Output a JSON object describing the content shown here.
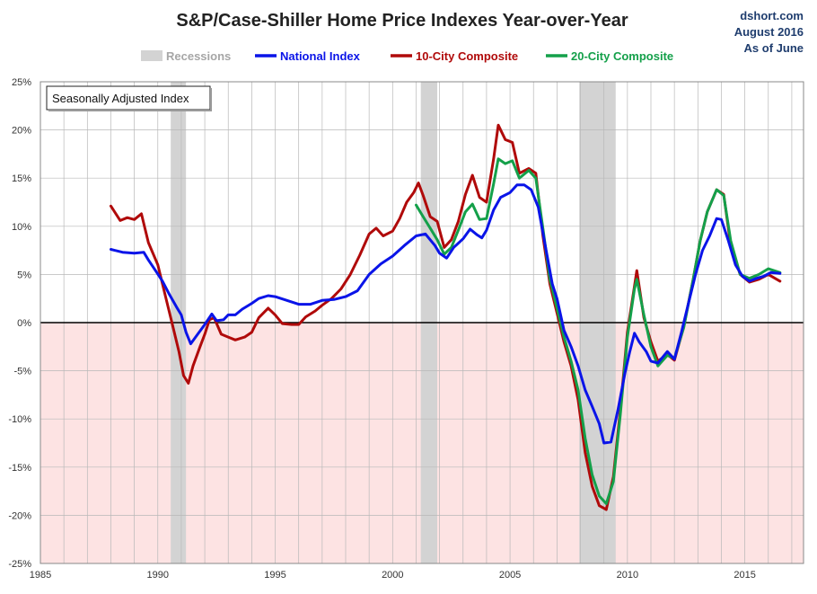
{
  "title": "S&P/Case-Shiller Home Price Indexes Year-over-Year",
  "credit": {
    "line1": "dshort.com",
    "line2": "August 2016",
    "line3": "As of June"
  },
  "annotation": "Seasonally Adjusted Index",
  "colors": {
    "recession": "#d3d3d3",
    "national": "#0a14e8",
    "ten_city": "#b00a0a",
    "twenty_city": "#14a04a",
    "negative_region": "#fde3e3",
    "zero_line": "#000000",
    "grid": "#b8b8b8"
  },
  "chart_data": {
    "type": "line",
    "title": "S&P/Case-Shiller Home Price Indexes Year-over-Year",
    "xlim": [
      1985,
      2017.5
    ],
    "ylim": [
      -25,
      25
    ],
    "x_ticks": [
      1985,
      1990,
      1995,
      2000,
      2005,
      2010,
      2015
    ],
    "x_tick_labels": [
      "1985",
      "1990",
      "1995",
      "2000",
      "2005",
      "2010",
      "2015"
    ],
    "y_ticks": [
      25,
      20,
      15,
      10,
      5,
      0,
      -5,
      -10,
      -15,
      -20,
      -25
    ],
    "y_tick_labels": [
      "25%",
      "20%",
      "15%",
      "10%",
      "5%",
      "0%",
      "-5%",
      "-10%",
      "-15%",
      "-20%",
      "-25%"
    ],
    "grid": true,
    "legend": {
      "position": "top",
      "entries": [
        "Recessions",
        "National Index",
        "10-City Composite",
        "20-City Composite"
      ]
    },
    "recessions": [
      [
        1990.55,
        1991.2
      ],
      [
        2001.2,
        2001.9
      ],
      [
        2007.95,
        2009.5
      ]
    ],
    "series": [
      {
        "name": "National Index",
        "color": "#0a14e8",
        "points": [
          [
            1988.0,
            7.6
          ],
          [
            1988.5,
            7.3
          ],
          [
            1989.0,
            7.2
          ],
          [
            1989.4,
            7.3
          ],
          [
            1989.6,
            6.5
          ],
          [
            1989.9,
            5.4
          ],
          [
            1990.2,
            4.3
          ],
          [
            1990.5,
            2.9
          ],
          [
            1990.8,
            1.6
          ],
          [
            1991.0,
            0.8
          ],
          [
            1991.2,
            -1.0
          ],
          [
            1991.4,
            -2.2
          ],
          [
            1991.7,
            -1.2
          ],
          [
            1992.0,
            -0.2
          ],
          [
            1992.3,
            0.9
          ],
          [
            1992.5,
            0.2
          ],
          [
            1992.8,
            0.3
          ],
          [
            1993.0,
            0.8
          ],
          [
            1993.3,
            0.8
          ],
          [
            1993.6,
            1.4
          ],
          [
            1994.0,
            2.0
          ],
          [
            1994.3,
            2.5
          ],
          [
            1994.7,
            2.8
          ],
          [
            1995.0,
            2.7
          ],
          [
            1995.5,
            2.3
          ],
          [
            1996.0,
            1.9
          ],
          [
            1996.5,
            1.9
          ],
          [
            1997.0,
            2.3
          ],
          [
            1997.5,
            2.4
          ],
          [
            1998.0,
            2.7
          ],
          [
            1998.5,
            3.3
          ],
          [
            1999.0,
            5.0
          ],
          [
            1999.5,
            6.1
          ],
          [
            2000.0,
            6.9
          ],
          [
            2000.5,
            8.0
          ],
          [
            2001.0,
            9.0
          ],
          [
            2001.4,
            9.2
          ],
          [
            2001.8,
            8.0
          ],
          [
            2002.0,
            7.2
          ],
          [
            2002.3,
            6.7
          ],
          [
            2002.6,
            7.8
          ],
          [
            2003.0,
            8.7
          ],
          [
            2003.3,
            9.7
          ],
          [
            2003.6,
            9.1
          ],
          [
            2003.8,
            8.8
          ],
          [
            2004.0,
            9.6
          ],
          [
            2004.3,
            11.7
          ],
          [
            2004.6,
            13.0
          ],
          [
            2005.0,
            13.5
          ],
          [
            2005.3,
            14.3
          ],
          [
            2005.6,
            14.3
          ],
          [
            2005.9,
            13.8
          ],
          [
            2006.2,
            12.0
          ],
          [
            2006.5,
            8.0
          ],
          [
            2006.8,
            4.0
          ],
          [
            2007.0,
            2.5
          ],
          [
            2007.3,
            -0.8
          ],
          [
            2007.6,
            -2.5
          ],
          [
            2007.9,
            -4.5
          ],
          [
            2008.2,
            -7.0
          ],
          [
            2008.5,
            -8.7
          ],
          [
            2008.8,
            -10.5
          ],
          [
            2009.0,
            -12.5
          ],
          [
            2009.3,
            -12.4
          ],
          [
            2009.6,
            -9.0
          ],
          [
            2009.9,
            -5.2
          ],
          [
            2010.1,
            -3.0
          ],
          [
            2010.3,
            -1.1
          ],
          [
            2010.5,
            -2.0
          ],
          [
            2010.8,
            -3.0
          ],
          [
            2011.0,
            -4.0
          ],
          [
            2011.3,
            -4.2
          ],
          [
            2011.7,
            -3.0
          ],
          [
            2012.0,
            -3.8
          ],
          [
            2012.3,
            -1.0
          ],
          [
            2012.6,
            2.0
          ],
          [
            2012.9,
            5.0
          ],
          [
            2013.2,
            7.5
          ],
          [
            2013.5,
            9.0
          ],
          [
            2013.8,
            10.8
          ],
          [
            2014.0,
            10.7
          ],
          [
            2014.3,
            8.5
          ],
          [
            2014.6,
            6.0
          ],
          [
            2014.9,
            4.8
          ],
          [
            2015.2,
            4.3
          ],
          [
            2015.5,
            4.6
          ],
          [
            2015.8,
            4.8
          ],
          [
            2016.1,
            5.2
          ],
          [
            2016.5,
            5.1
          ]
        ]
      },
      {
        "name": "10-City Composite",
        "color": "#b00a0a",
        "points": [
          [
            1988.0,
            12.1
          ],
          [
            1988.4,
            10.6
          ],
          [
            1988.7,
            10.9
          ],
          [
            1989.0,
            10.7
          ],
          [
            1989.3,
            11.3
          ],
          [
            1989.6,
            8.3
          ],
          [
            1990.0,
            6.0
          ],
          [
            1990.3,
            3.0
          ],
          [
            1990.6,
            0.0
          ],
          [
            1990.9,
            -3.0
          ],
          [
            1991.1,
            -5.5
          ],
          [
            1991.3,
            -6.3
          ],
          [
            1991.5,
            -4.5
          ],
          [
            1991.8,
            -2.5
          ],
          [
            1992.0,
            -1.2
          ],
          [
            1992.2,
            0.3
          ],
          [
            1992.4,
            0.5
          ],
          [
            1992.7,
            -1.2
          ],
          [
            1993.0,
            -1.5
          ],
          [
            1993.3,
            -1.8
          ],
          [
            1993.7,
            -1.5
          ],
          [
            1994.0,
            -1.0
          ],
          [
            1994.3,
            0.5
          ],
          [
            1994.7,
            1.5
          ],
          [
            1995.0,
            0.8
          ],
          [
            1995.3,
            -0.1
          ],
          [
            1995.7,
            -0.2
          ],
          [
            1996.0,
            -0.2
          ],
          [
            1996.3,
            0.6
          ],
          [
            1996.7,
            1.2
          ],
          [
            1997.0,
            1.8
          ],
          [
            1997.4,
            2.5
          ],
          [
            1997.8,
            3.5
          ],
          [
            1998.2,
            5.0
          ],
          [
            1998.6,
            7.0
          ],
          [
            1999.0,
            9.2
          ],
          [
            1999.3,
            9.8
          ],
          [
            1999.6,
            9.0
          ],
          [
            2000.0,
            9.5
          ],
          [
            2000.3,
            10.8
          ],
          [
            2000.6,
            12.5
          ],
          [
            2000.9,
            13.5
          ],
          [
            2001.1,
            14.5
          ],
          [
            2001.3,
            13.2
          ],
          [
            2001.6,
            11.0
          ],
          [
            2001.9,
            10.5
          ],
          [
            2002.2,
            7.8
          ],
          [
            2002.5,
            8.6
          ],
          [
            2002.8,
            10.5
          ],
          [
            2003.1,
            13.3
          ],
          [
            2003.4,
            15.3
          ],
          [
            2003.7,
            13.0
          ],
          [
            2004.0,
            12.5
          ],
          [
            2004.3,
            17.0
          ],
          [
            2004.5,
            20.5
          ],
          [
            2004.8,
            19.0
          ],
          [
            2005.1,
            18.7
          ],
          [
            2005.4,
            15.5
          ],
          [
            2005.8,
            16.0
          ],
          [
            2006.1,
            15.5
          ],
          [
            2006.4,
            9.0
          ],
          [
            2006.7,
            4.0
          ],
          [
            2007.0,
            1.0
          ],
          [
            2007.3,
            -2.0
          ],
          [
            2007.6,
            -4.5
          ],
          [
            2007.9,
            -8.0
          ],
          [
            2008.2,
            -13.5
          ],
          [
            2008.5,
            -17.0
          ],
          [
            2008.8,
            -19.0
          ],
          [
            2009.1,
            -19.4
          ],
          [
            2009.4,
            -16.0
          ],
          [
            2009.7,
            -9.0
          ],
          [
            2010.0,
            -1.0
          ],
          [
            2010.3,
            3.8
          ],
          [
            2010.4,
            5.4
          ],
          [
            2010.7,
            0.5
          ],
          [
            2011.0,
            -2.0
          ],
          [
            2011.3,
            -4.0
          ],
          [
            2011.7,
            -3.3
          ],
          [
            2012.0,
            -3.9
          ],
          [
            2012.4,
            -0.4
          ],
          [
            2012.8,
            4.5
          ],
          [
            2013.1,
            8.5
          ],
          [
            2013.4,
            11.5
          ],
          [
            2013.8,
            13.8
          ],
          [
            2014.1,
            13.3
          ],
          [
            2014.4,
            8.0
          ],
          [
            2014.8,
            5.0
          ],
          [
            2015.2,
            4.2
          ],
          [
            2015.6,
            4.5
          ],
          [
            2016.0,
            5.0
          ],
          [
            2016.5,
            4.3
          ]
        ]
      },
      {
        "name": "20-City Composite",
        "color": "#14a04a",
        "points": [
          [
            2001.0,
            12.2
          ],
          [
            2001.3,
            11.0
          ],
          [
            2001.6,
            9.8
          ],
          [
            2001.9,
            8.6
          ],
          [
            2002.2,
            7.1
          ],
          [
            2002.5,
            7.8
          ],
          [
            2002.8,
            9.6
          ],
          [
            2003.1,
            11.5
          ],
          [
            2003.4,
            12.3
          ],
          [
            2003.7,
            10.7
          ],
          [
            2004.0,
            10.8
          ],
          [
            2004.3,
            14.4
          ],
          [
            2004.5,
            17.0
          ],
          [
            2004.8,
            16.5
          ],
          [
            2005.1,
            16.8
          ],
          [
            2005.4,
            15.0
          ],
          [
            2005.8,
            15.8
          ],
          [
            2006.1,
            15.0
          ],
          [
            2006.4,
            9.8
          ],
          [
            2006.7,
            4.5
          ],
          [
            2007.0,
            1.5
          ],
          [
            2007.3,
            -1.5
          ],
          [
            2007.6,
            -4.0
          ],
          [
            2007.9,
            -7.0
          ],
          [
            2008.2,
            -12.0
          ],
          [
            2008.5,
            -15.8
          ],
          [
            2008.8,
            -18.0
          ],
          [
            2009.1,
            -18.8
          ],
          [
            2009.4,
            -16.5
          ],
          [
            2009.7,
            -9.5
          ],
          [
            2010.0,
            -1.5
          ],
          [
            2010.3,
            3.5
          ],
          [
            2010.4,
            4.5
          ],
          [
            2010.7,
            0.8
          ],
          [
            2011.0,
            -2.5
          ],
          [
            2011.3,
            -4.5
          ],
          [
            2011.7,
            -3.4
          ],
          [
            2012.0,
            -3.7
          ],
          [
            2012.4,
            -0.5
          ],
          [
            2012.8,
            4.5
          ],
          [
            2013.1,
            8.5
          ],
          [
            2013.4,
            11.5
          ],
          [
            2013.8,
            13.8
          ],
          [
            2014.1,
            13.2
          ],
          [
            2014.4,
            8.5
          ],
          [
            2014.8,
            5.0
          ],
          [
            2015.2,
            4.6
          ],
          [
            2015.6,
            5.0
          ],
          [
            2016.0,
            5.6
          ],
          [
            2016.5,
            5.2
          ]
        ]
      }
    ]
  }
}
